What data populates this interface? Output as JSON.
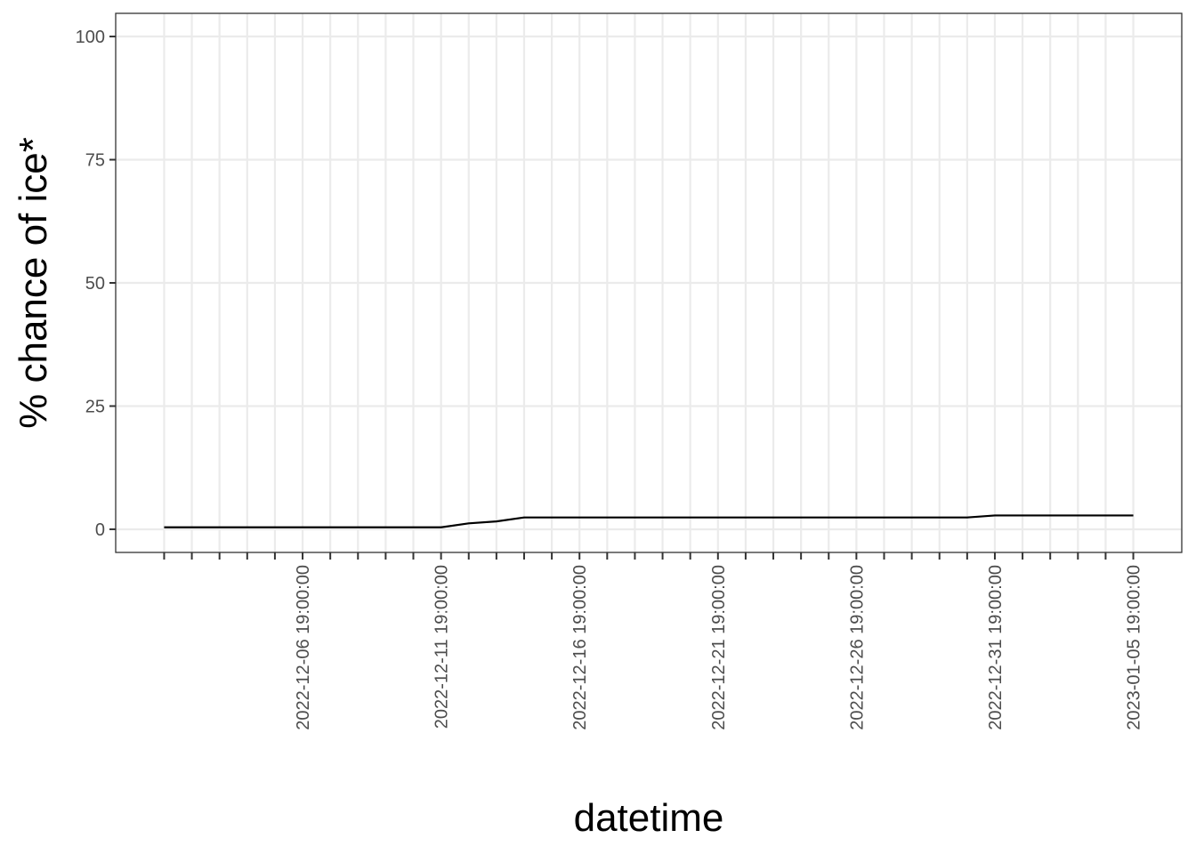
{
  "chart_data": {
    "type": "line",
    "title": "",
    "xlabel": "datetime",
    "ylabel": "% chance of ice*",
    "x_axis_kind": "date",
    "x": [
      "2022-12-01 19:00:00",
      "2022-12-02 19:00:00",
      "2022-12-03 19:00:00",
      "2022-12-04 19:00:00",
      "2022-12-05 19:00:00",
      "2022-12-06 19:00:00",
      "2022-12-07 19:00:00",
      "2022-12-08 19:00:00",
      "2022-12-09 19:00:00",
      "2022-12-10 19:00:00",
      "2022-12-11 19:00:00",
      "2022-12-12 19:00:00",
      "2022-12-13 19:00:00",
      "2022-12-14 19:00:00",
      "2022-12-15 19:00:00",
      "2022-12-16 19:00:00",
      "2022-12-17 19:00:00",
      "2022-12-18 19:00:00",
      "2022-12-19 19:00:00",
      "2022-12-20 19:00:00",
      "2022-12-21 19:00:00",
      "2022-12-22 19:00:00",
      "2022-12-23 19:00:00",
      "2022-12-24 19:00:00",
      "2022-12-25 19:00:00",
      "2022-12-26 19:00:00",
      "2022-12-27 19:00:00",
      "2022-12-28 19:00:00",
      "2022-12-29 19:00:00",
      "2022-12-30 19:00:00",
      "2022-12-31 19:00:00",
      "2023-01-01 19:00:00",
      "2023-01-02 19:00:00",
      "2023-01-03 19:00:00",
      "2023-01-04 19:00:00",
      "2023-01-05 19:00:00"
    ],
    "series": [
      {
        "values": [
          0.4,
          0.4,
          0.4,
          0.4,
          0.4,
          0.4,
          0.4,
          0.4,
          0.4,
          0.4,
          0.4,
          1.2,
          1.6,
          2.4,
          2.4,
          2.4,
          2.4,
          2.4,
          2.4,
          2.4,
          2.4,
          2.4,
          2.4,
          2.4,
          2.4,
          2.4,
          2.4,
          2.4,
          2.4,
          2.4,
          2.8,
          2.8,
          2.8,
          2.8,
          2.8,
          2.8
        ],
        "color": "#000000"
      }
    ],
    "x_tick_labels": [
      "2022-12-06 19:00:00",
      "2022-12-11 19:00:00",
      "2022-12-16 19:00:00",
      "2022-12-21 19:00:00",
      "2022-12-26 19:00:00",
      "2022-12-31 19:00:00",
      "2023-01-05 19:00:00"
    ],
    "y_ticks": [
      0,
      25,
      50,
      75,
      100
    ],
    "ylim": [
      -4.7,
      104.7
    ],
    "grid": true,
    "legend": "none",
    "colors": {
      "grid": "#ebebeb",
      "panel_border": "#333333",
      "tick_text": "#4d4d4d",
      "line": "#000000"
    }
  }
}
